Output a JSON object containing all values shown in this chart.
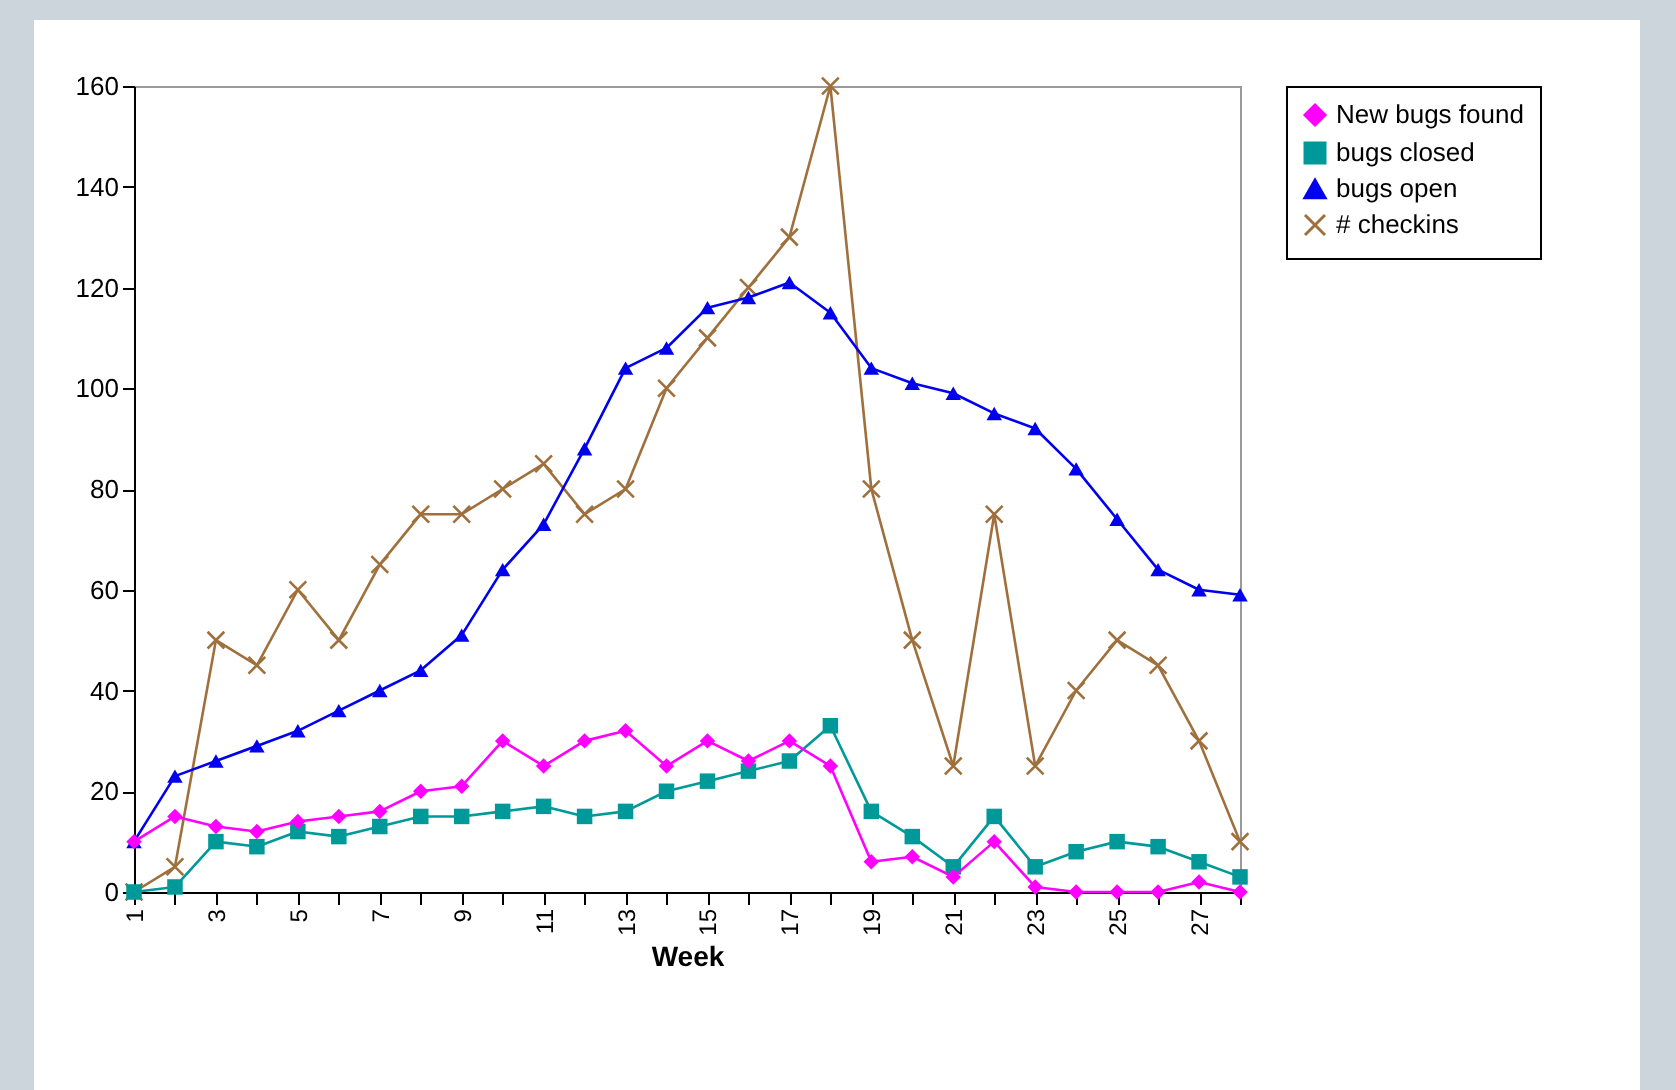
{
  "chart_data": {
    "type": "line",
    "xlabel": "Week",
    "categories": [
      "1",
      null,
      "3",
      null,
      "5",
      null,
      "7",
      null,
      "9",
      null,
      "11",
      null,
      "13",
      null,
      "15",
      null,
      "17",
      null,
      "19",
      null,
      "21",
      null,
      "23",
      null,
      "25",
      null,
      "27",
      null
    ],
    "series": [
      {
        "name": "New bugs found",
        "color": "#ff00ff",
        "marker": "diamond",
        "values": [
          10,
          15,
          13,
          12,
          14,
          15,
          16,
          20,
          21,
          30,
          25,
          30,
          32,
          25,
          30,
          26,
          30,
          25,
          6,
          7,
          3,
          10,
          1,
          0,
          0,
          0,
          2,
          0
        ]
      },
      {
        "name": "bugs closed",
        "color": "#009999",
        "marker": "square",
        "values": [
          0,
          1,
          10,
          9,
          12,
          11,
          13,
          15,
          15,
          16,
          17,
          15,
          16,
          20,
          22,
          24,
          26,
          33,
          16,
          11,
          5,
          15,
          5,
          8,
          10,
          9,
          6,
          3
        ]
      },
      {
        "name": "bugs open",
        "color": "#0000ee",
        "marker": "triangle",
        "values": [
          10,
          23,
          26,
          29,
          32,
          36,
          40,
          44,
          51,
          64,
          73,
          88,
          104,
          108,
          116,
          118,
          121,
          115,
          104,
          101,
          99,
          95,
          92,
          84,
          74,
          64,
          60,
          59
        ]
      },
      {
        "name": "# checkins",
        "color": "#a0703c",
        "marker": "cross",
        "values": [
          0,
          5,
          50,
          45,
          60,
          50,
          65,
          75,
          75,
          80,
          85,
          75,
          80,
          100,
          110,
          120,
          130,
          160,
          80,
          50,
          25,
          75,
          25,
          40,
          50,
          45,
          30,
          10
        ]
      }
    ],
    "ylim": [
      0,
      160
    ],
    "yticks": [
      0,
      20,
      40,
      60,
      80,
      100,
      120,
      140,
      160
    ],
    "grid": false,
    "legend": "right",
    "line_style": "solid"
  }
}
